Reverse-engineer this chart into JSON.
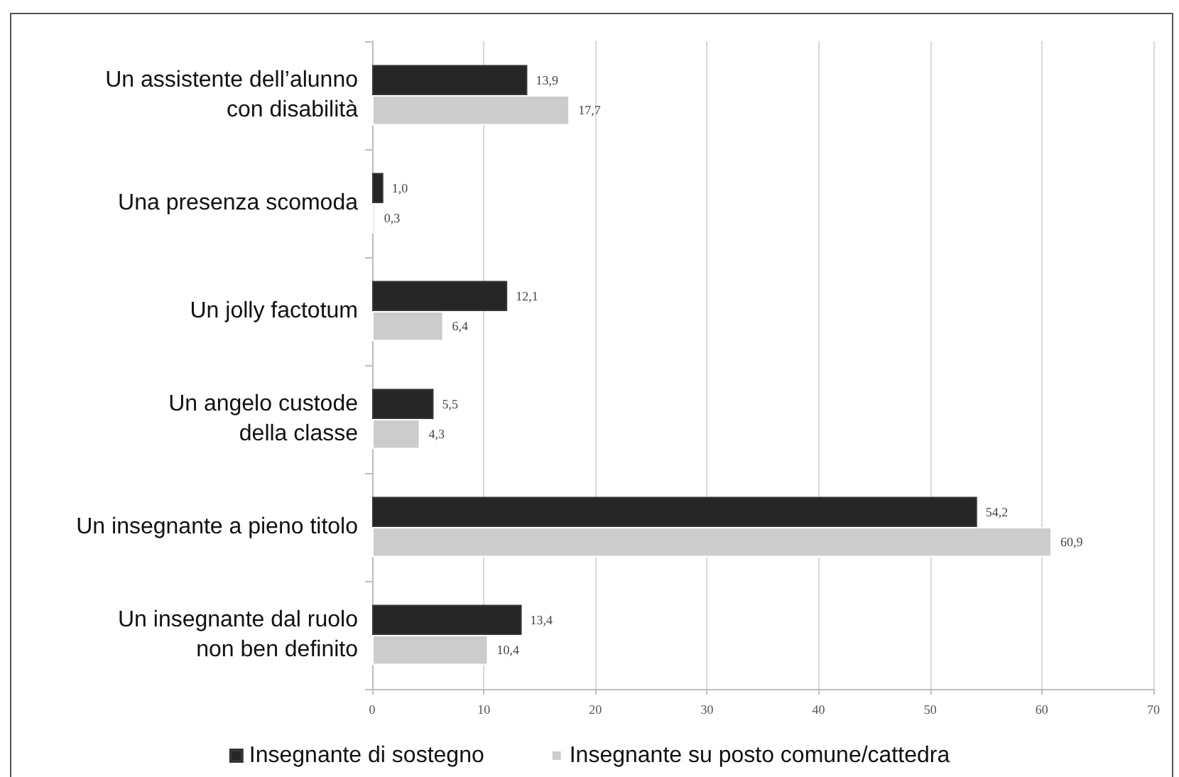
{
  "chart_data": {
    "type": "bar",
    "orientation": "horizontal",
    "categories": [
      "Un assistente dell’alunno\ncon disabilità",
      "Una presenza scomoda",
      "Un jolly factotum",
      "Un angelo custode\ndella classe",
      "Un insegnante a pieno titolo",
      "Un insegnante dal ruolo\nnon ben definito"
    ],
    "series": [
      {
        "name": "Insegnante di sostegno",
        "color": "#262626",
        "values": [
          13.9,
          1.0,
          12.1,
          5.5,
          54.2,
          13.4
        ],
        "value_labels": [
          "13,9",
          "1,0",
          "12,1",
          "5,5",
          "54,2",
          "13,4"
        ]
      },
      {
        "name": "Insegnante su posto comune/cattedra",
        "color": "#cccccc",
        "values": [
          17.7,
          0.3,
          6.4,
          4.3,
          60.9,
          10.4
        ],
        "value_labels": [
          "17,7",
          "0,3",
          "6,4",
          "4,3",
          "60,9",
          "10,4"
        ]
      }
    ],
    "xlim": [
      0,
      70
    ],
    "xticks": [
      0,
      10,
      20,
      30,
      40,
      50,
      60,
      70
    ],
    "grid": "x",
    "legend": "bottom"
  }
}
